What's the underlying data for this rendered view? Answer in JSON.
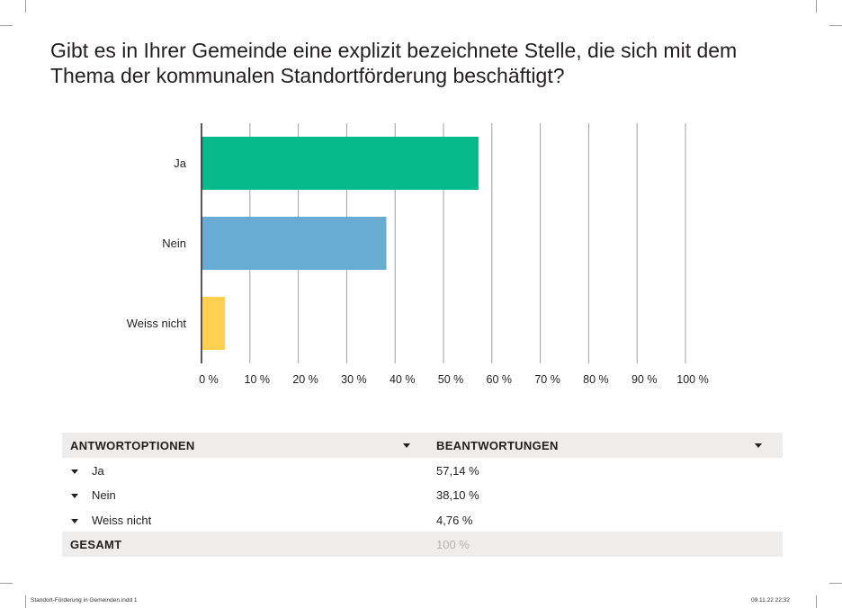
{
  "question": "Gibt es in Ihrer Gemeinde eine explizit bezeichnete Stelle, die sich mit dem Thema der kommunalen Standortförderung beschäftigt?",
  "colors": {
    "ja": "#06b98a",
    "nein": "#68acd3",
    "weiss_nicht": "#fdd052",
    "grid": "#a0a0a0",
    "axis": "#231f20"
  },
  "chart_data": {
    "type": "bar",
    "orientation": "horizontal",
    "title": "Gibt es in Ihrer Gemeinde eine explizit bezeichnete Stelle, die sich mit dem Thema der kommunalen Standortförderung beschäftigt?",
    "categories": [
      "Ja",
      "Nein",
      "Weiss nicht"
    ],
    "values": [
      57.14,
      38.1,
      4.76
    ],
    "xlim": [
      0,
      100
    ],
    "ticks": [
      0,
      10,
      20,
      30,
      40,
      50,
      60,
      70,
      80,
      90,
      100
    ],
    "tick_labels": [
      "0 %",
      "10 %",
      "20 %",
      "30 %",
      "40 %",
      "50 %",
      "60 %",
      "70 %",
      "80 %",
      "90 %",
      "100 %"
    ],
    "grid": true
  },
  "table": {
    "header": {
      "col1": "ANTWORTOPTIONEN",
      "col2": "BEANTWORTUNGEN"
    },
    "rows": [
      {
        "label": "Ja",
        "value": "57,14 %"
      },
      {
        "label": "Nein",
        "value": "38,10 %"
      },
      {
        "label": "Weiss nicht",
        "value": "4,76 %"
      }
    ],
    "total": {
      "label": "GESAMT",
      "value": "100 %"
    }
  },
  "footer": {
    "left": "Standort-Förderung in Gemeinden.indd   1",
    "right": "09.11.22   22:32"
  }
}
